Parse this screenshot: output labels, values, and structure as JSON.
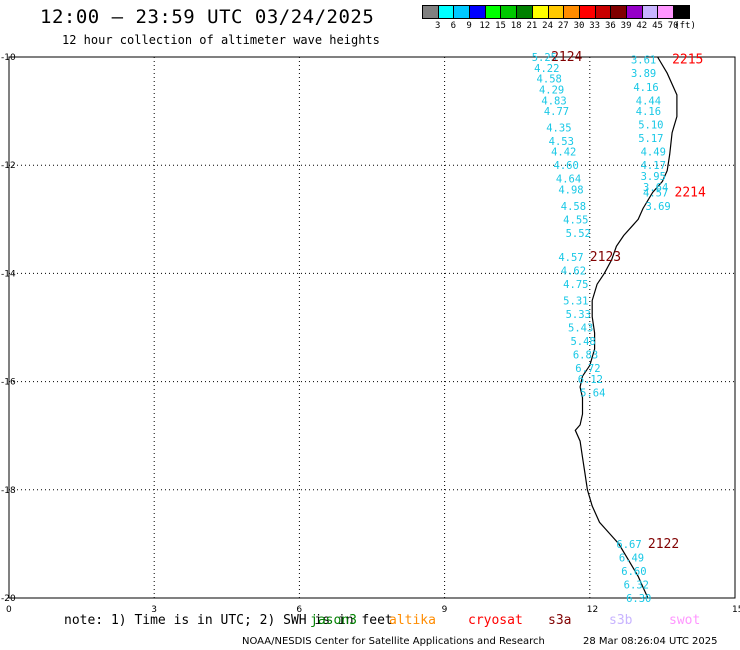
{
  "header": {
    "title": "12:00 – 23:59 UTC 03/24/2025",
    "subtitle": "12 hour collection of altimeter wave heights"
  },
  "colorbar": {
    "colors": [
      "#808080",
      "#00ffff",
      "#00c8ff",
      "#0000ff",
      "#00ff00",
      "#00c800",
      "#008000",
      "#ffff00",
      "#ffc800",
      "#ff8c00",
      "#ff0000",
      "#c80000",
      "#800000",
      "#9600c8",
      "#c8b4ff",
      "#ff96ff",
      "#000000"
    ],
    "labels": [
      "3",
      "6",
      "9",
      "12",
      "15",
      "18",
      "21",
      "24",
      "27",
      "30",
      "33",
      "36",
      "39",
      "42",
      "45",
      "70",
      "(ft)"
    ]
  },
  "axes": {
    "lat_labels": [
      "-10",
      "-12",
      "-14",
      "-16",
      "-18",
      "-20"
    ],
    "lon_labels": [
      "0",
      "3",
      "6",
      "9",
      "12",
      "15"
    ],
    "lat_values": [
      -10,
      -12,
      -14,
      -16,
      -18,
      -20
    ],
    "lon_values": [
      0,
      3,
      6,
      9,
      12,
      15
    ],
    "lon_range": [
      0,
      15
    ],
    "lat_range": [
      -20,
      -10
    ]
  },
  "coastline": [
    [
      13.4,
      -10.0
    ],
    [
      13.6,
      -10.3
    ],
    [
      13.8,
      -10.7
    ],
    [
      13.8,
      -11.1
    ],
    [
      13.7,
      -11.4
    ],
    [
      13.65,
      -11.8
    ],
    [
      13.6,
      -12.1
    ],
    [
      13.5,
      -12.3
    ],
    [
      13.3,
      -12.5
    ],
    [
      13.1,
      -12.8
    ],
    [
      13.0,
      -13.0
    ],
    [
      12.9,
      -13.1
    ],
    [
      12.7,
      -13.3
    ],
    [
      12.55,
      -13.5
    ],
    [
      12.45,
      -13.75
    ],
    [
      12.3,
      -14.0
    ],
    [
      12.15,
      -14.2
    ],
    [
      12.05,
      -14.5
    ],
    [
      12.05,
      -14.8
    ],
    [
      12.1,
      -15.1
    ],
    [
      12.1,
      -15.4
    ],
    [
      12.0,
      -15.7
    ],
    [
      11.85,
      -15.9
    ],
    [
      11.8,
      -16.1
    ],
    [
      11.85,
      -16.3
    ],
    [
      11.85,
      -16.6
    ],
    [
      11.8,
      -16.8
    ],
    [
      11.7,
      -16.9
    ],
    [
      11.8,
      -17.1
    ],
    [
      11.85,
      -17.4
    ],
    [
      11.9,
      -17.7
    ],
    [
      11.95,
      -18.0
    ],
    [
      12.05,
      -18.3
    ],
    [
      12.2,
      -18.6
    ],
    [
      12.4,
      -18.8
    ],
    [
      12.6,
      -19.0
    ],
    [
      12.8,
      -19.3
    ],
    [
      13.0,
      -19.6
    ],
    [
      13.1,
      -19.8
    ],
    [
      13.2,
      -20.0
    ]
  ],
  "passes": [
    {
      "id": "2124",
      "color": "#800000",
      "label_pos": [
        11.2,
        -10.0
      ],
      "values": [
        {
          "v": "5.25",
          "lon": 10.8,
          "lat": -10.0
        },
        {
          "v": "4.22",
          "lon": 10.85,
          "lat": -10.2
        },
        {
          "v": "4.58",
          "lon": 10.9,
          "lat": -10.4
        },
        {
          "v": "4.29",
          "lon": 10.95,
          "lat": -10.6
        },
        {
          "v": "4.83",
          "lon": 11.0,
          "lat": -10.8
        },
        {
          "v": "4.77",
          "lon": 11.05,
          "lat": -11.0
        },
        {
          "v": "4.35",
          "lon": 11.1,
          "lat": -11.3
        },
        {
          "v": "4.53",
          "lon": 11.15,
          "lat": -11.55
        },
        {
          "v": "4.42",
          "lon": 11.2,
          "lat": -11.75
        },
        {
          "v": "4.60",
          "lon": 11.25,
          "lat": -12.0
        },
        {
          "v": "4.64",
          "lon": 11.3,
          "lat": -12.25
        },
        {
          "v": "4.98",
          "lon": 11.35,
          "lat": -12.45
        },
        {
          "v": "4.58",
          "lon": 11.4,
          "lat": -12.75
        },
        {
          "v": "4.55",
          "lon": 11.45,
          "lat": -13.0
        },
        {
          "v": "5.52",
          "lon": 11.5,
          "lat": -13.25
        }
      ]
    },
    {
      "id": "2215",
      "color": "#ff0000",
      "label_pos": [
        13.7,
        -10.05
      ],
      "values": [
        {
          "v": "3.61",
          "lon": 12.85,
          "lat": -10.05
        },
        {
          "v": "3.89",
          "lon": 12.85,
          "lat": -10.3
        },
        {
          "v": "4.16",
          "lon": 12.9,
          "lat": -10.55
        },
        {
          "v": "4.44",
          "lon": 12.95,
          "lat": -10.8
        },
        {
          "v": "4.16",
          "lon": 12.95,
          "lat": -11.0
        },
        {
          "v": "5.10",
          "lon": 13.0,
          "lat": -11.25
        },
        {
          "v": "5.17",
          "lon": 13.0,
          "lat": -11.5
        },
        {
          "v": "4.49",
          "lon": 13.05,
          "lat": -11.75
        },
        {
          "v": "4.17",
          "lon": 13.05,
          "lat": -12.0
        },
        {
          "v": "3.95",
          "lon": 13.05,
          "lat": -12.2
        },
        {
          "v": "3.64",
          "lon": 13.1,
          "lat": -12.4
        },
        {
          "v": "4.57",
          "lon": 13.1,
          "lat": -12.5
        },
        {
          "v": "3.69",
          "lon": 13.15,
          "lat": -12.75
        }
      ]
    },
    {
      "id": "2214",
      "color": "#ff0000",
      "label_pos": [
        13.75,
        -12.5
      ],
      "values": []
    },
    {
      "id": "2123",
      "color": "#800000",
      "label_pos": [
        12.0,
        -13.7
      ],
      "values": [
        {
          "v": "4.57",
          "lon": 11.35,
          "lat": -13.7
        },
        {
          "v": "4.62",
          "lon": 11.4,
          "lat": -13.95
        },
        {
          "v": "4.75",
          "lon": 11.45,
          "lat": -14.2
        },
        {
          "v": "5.31",
          "lon": 11.45,
          "lat": -14.5
        },
        {
          "v": "5.33",
          "lon": 11.5,
          "lat": -14.75
        },
        {
          "v": "5.43",
          "lon": 11.55,
          "lat": -15.0
        },
        {
          "v": "5.48",
          "lon": 11.6,
          "lat": -15.25
        },
        {
          "v": "6.83",
          "lon": 11.65,
          "lat": -15.5
        },
        {
          "v": "6.72",
          "lon": 11.7,
          "lat": -15.75
        },
        {
          "v": "6.12",
          "lon": 11.75,
          "lat": -15.95
        },
        {
          "v": "5.64",
          "lon": 11.8,
          "lat": -16.2
        }
      ]
    },
    {
      "id": "2122",
      "color": "#800000",
      "label_pos": [
        13.2,
        -19.0
      ],
      "values": [
        {
          "v": "6.67",
          "lon": 12.55,
          "lat": -19.0
        },
        {
          "v": "6.49",
          "lon": 12.6,
          "lat": -19.25
        },
        {
          "v": "6.60",
          "lon": 12.65,
          "lat": -19.5
        },
        {
          "v": "6.32",
          "lon": 12.7,
          "lat": -19.75
        },
        {
          "v": "6.30",
          "lon": 12.75,
          "lat": -20.0
        }
      ]
    }
  ],
  "footer": {
    "note": "note:  1) Time is in UTC; 2) SWH is in feet",
    "satellites": [
      {
        "name": "jason3",
        "color": "#008000"
      },
      {
        "name": "altika",
        "color": "#ff8c00"
      },
      {
        "name": "cryosat",
        "color": "#ff0000"
      },
      {
        "name": "s3a",
        "color": "#800000"
      },
      {
        "name": "s3b",
        "color": "#c8b4ff"
      },
      {
        "name": "swot",
        "color": "#ff96ff"
      }
    ],
    "credit": "NOAA/NESDIS Center for Satellite Applications and Research",
    "timestamp": "28 Mar 08:26:04 UTC 2025"
  }
}
